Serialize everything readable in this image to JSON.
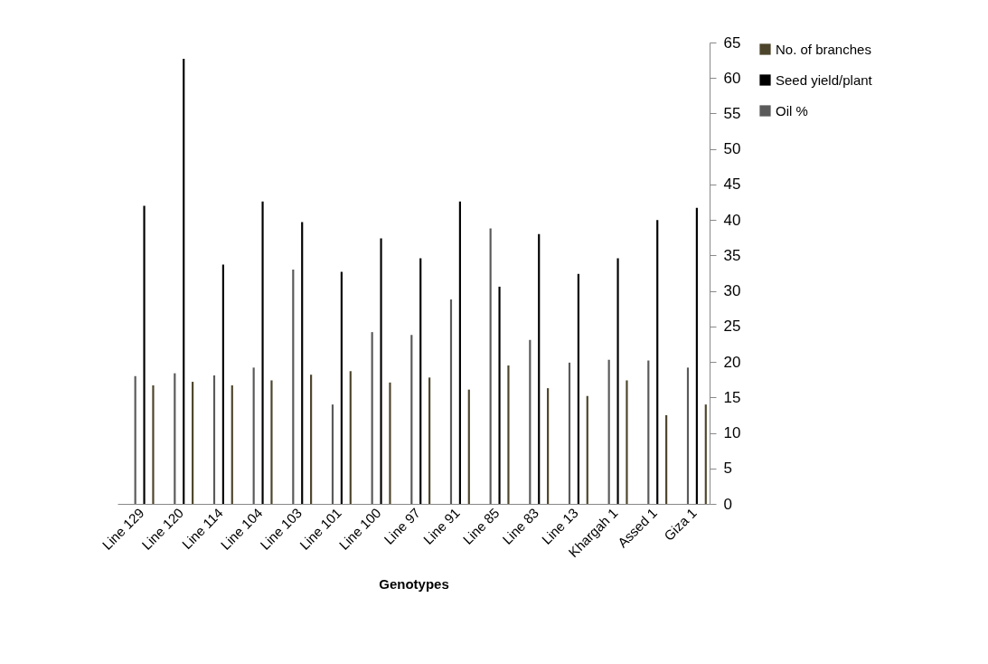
{
  "chart_data": {
    "type": "bar",
    "xlabel": "Genotypes",
    "categories": [
      "Line 129",
      "Line 120",
      "Line 114",
      "Line 104",
      "Line 103",
      "Line 101",
      "Line 100",
      "Line 97",
      "Line 91",
      "Line 85",
      "Line 83",
      "Line 13",
      "Khargah 1",
      "Assed 1",
      "Giza 1"
    ],
    "series": [
      {
        "name": "Oil %",
        "color": "#5a5a5a",
        "values": [
          18.0,
          18.4,
          18.1,
          19.2,
          33.0,
          14.0,
          24.2,
          23.8,
          28.8,
          38.8,
          23.1,
          19.9,
          20.3,
          20.2,
          19.2
        ]
      },
      {
        "name": "Seed yield/plant",
        "color": "#000000",
        "values": [
          42.0,
          62.7,
          33.7,
          42.6,
          39.7,
          32.7,
          37.4,
          34.6,
          42.6,
          30.6,
          38.0,
          32.4,
          34.6,
          40.0,
          41.7
        ]
      },
      {
        "name": "No. of branches",
        "color": "#4d452b",
        "values": [
          16.7,
          17.2,
          16.7,
          17.4,
          18.2,
          18.7,
          17.1,
          17.8,
          16.1,
          19.5,
          16.3,
          15.2,
          17.4,
          12.5,
          14.0
        ]
      }
    ],
    "ylim": [
      0,
      65
    ],
    "yticks": [
      0,
      5,
      10,
      15,
      20,
      25,
      30,
      35,
      40,
      45,
      50,
      55,
      60,
      65
    ],
    "grid": false,
    "legend": "right"
  }
}
